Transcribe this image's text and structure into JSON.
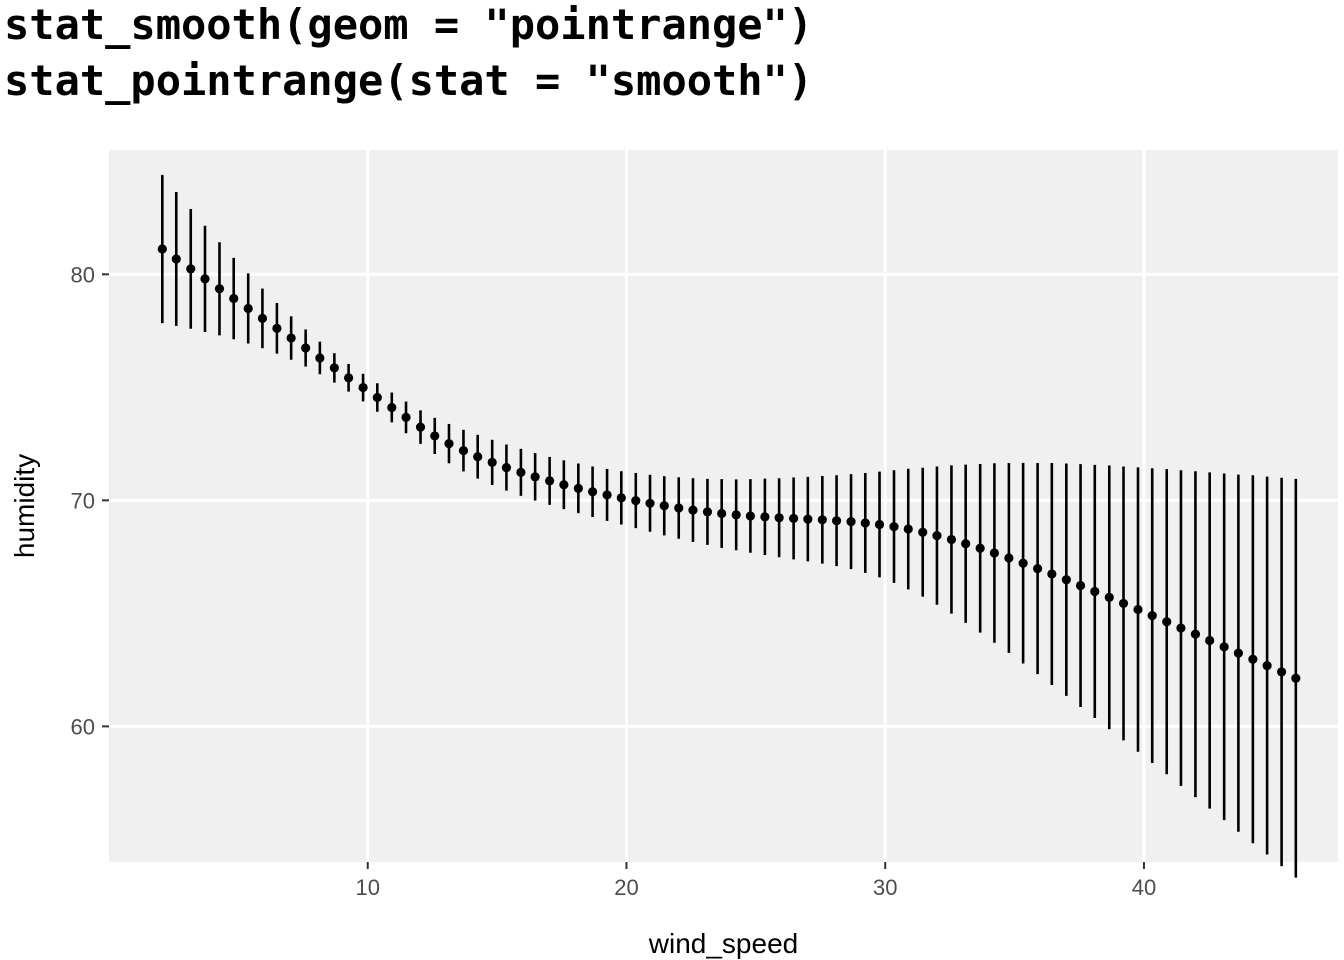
{
  "code_title": {
    "line1": "stat_smooth(geom = \"pointrange\")",
    "line2": "stat_pointrange(stat = \"smooth\")"
  },
  "colors": {
    "panel_background": "#f0f0f0",
    "grid": "#ffffff",
    "marks": "#000000",
    "tick_text": "#4d4d4d"
  },
  "chart_data": {
    "type": "pointrange",
    "xlabel": "wind_speed",
    "ylabel": "humidity",
    "xlim": [
      0,
      47.5
    ],
    "ylim": [
      54,
      85.5
    ],
    "x_ticks": [
      10,
      20,
      30,
      40
    ],
    "y_ticks": [
      60,
      70,
      80
    ],
    "grid": true,
    "series": [
      {
        "x": [
          2.06,
          2.6,
          3.16,
          3.71,
          4.27,
          4.82,
          5.38,
          5.93,
          6.49,
          7.04,
          7.6,
          8.15,
          8.71,
          9.26,
          9.82,
          10.37,
          10.93,
          11.48,
          12.04,
          12.59,
          13.14,
          13.7,
          14.25,
          14.81,
          15.36,
          15.92,
          16.47,
          17.03,
          17.58,
          18.14,
          18.69,
          19.25,
          19.8,
          20.36,
          20.91,
          21.46,
          22.02,
          22.57,
          23.13,
          23.68,
          24.24,
          24.79,
          25.35,
          25.9,
          26.46,
          27.01,
          27.57,
          28.12,
          28.68,
          29.23,
          29.78,
          30.34,
          30.89,
          31.45,
          32.0,
          32.56,
          33.11,
          33.67,
          34.22,
          34.78,
          35.33,
          35.89,
          36.44,
          37.0,
          37.55,
          38.1,
          38.66,
          39.21,
          39.77,
          40.32,
          40.88,
          41.43,
          41.99,
          42.54,
          43.1,
          43.65,
          44.21,
          44.76,
          45.32,
          45.87
        ],
        "y": [
          81.12,
          80.68,
          80.24,
          79.8,
          79.36,
          78.93,
          78.49,
          78.05,
          77.61,
          77.18,
          76.74,
          76.3,
          75.86,
          75.42,
          74.99,
          74.55,
          74.11,
          73.67,
          73.24,
          72.85,
          72.51,
          72.2,
          71.93,
          71.68,
          71.45,
          71.24,
          71.04,
          70.86,
          70.69,
          70.53,
          70.38,
          70.24,
          70.11,
          69.99,
          69.87,
          69.76,
          69.66,
          69.57,
          69.49,
          69.42,
          69.36,
          69.31,
          69.27,
          69.23,
          69.2,
          69.17,
          69.14,
          69.1,
          69.06,
          69.0,
          68.93,
          68.84,
          68.73,
          68.59,
          68.44,
          68.27,
          68.08,
          67.88,
          67.67,
          67.45,
          67.22,
          66.98,
          66.74,
          66.49,
          66.23,
          65.97,
          65.71,
          65.44,
          65.17,
          64.9,
          64.63,
          64.35,
          64.08,
          63.8,
          63.52,
          63.24,
          62.97,
          62.69,
          62.41,
          62.13
        ],
        "ymin": [
          77.84,
          77.72,
          77.59,
          77.45,
          77.3,
          77.13,
          76.94,
          76.73,
          76.49,
          76.22,
          75.92,
          75.58,
          75.21,
          74.81,
          74.38,
          73.92,
          73.45,
          72.97,
          72.5,
          72.05,
          71.64,
          71.28,
          70.96,
          70.68,
          70.43,
          70.2,
          69.99,
          69.8,
          69.61,
          69.43,
          69.26,
          69.09,
          68.93,
          68.77,
          68.61,
          68.45,
          68.3,
          68.16,
          68.03,
          67.9,
          67.79,
          67.68,
          67.58,
          67.48,
          67.39,
          67.3,
          67.2,
          67.09,
          66.96,
          66.79,
          66.59,
          66.35,
          66.06,
          65.74,
          65.38,
          64.99,
          64.58,
          64.15,
          63.7,
          63.25,
          62.78,
          62.31,
          61.83,
          61.35,
          60.86,
          60.37,
          59.88,
          59.38,
          58.88,
          58.38,
          57.88,
          57.37,
          56.87,
          56.36,
          55.85,
          55.34,
          54.83,
          54.33,
          53.82,
          53.31
        ],
        "ymax": [
          84.4,
          83.64,
          82.89,
          82.15,
          81.42,
          80.73,
          80.04,
          79.37,
          78.73,
          78.14,
          77.56,
          77.02,
          76.51,
          76.03,
          75.6,
          75.18,
          74.77,
          74.37,
          73.98,
          73.65,
          73.38,
          73.12,
          72.9,
          72.68,
          72.47,
          72.28,
          72.09,
          71.92,
          71.77,
          71.63,
          71.5,
          71.39,
          71.29,
          71.21,
          71.13,
          71.07,
          71.02,
          70.98,
          70.95,
          70.94,
          70.93,
          70.94,
          70.96,
          70.98,
          71.01,
          71.04,
          71.08,
          71.11,
          71.16,
          71.21,
          71.27,
          71.33,
          71.4,
          71.44,
          71.5,
          71.55,
          71.58,
          71.61,
          71.64,
          71.65,
          71.66,
          71.65,
          71.65,
          71.63,
          71.6,
          71.57,
          71.54,
          71.5,
          71.46,
          71.42,
          71.38,
          71.33,
          71.29,
          71.24,
          71.19,
          71.14,
          71.11,
          71.05,
          71.0,
          70.95
        ]
      }
    ]
  }
}
